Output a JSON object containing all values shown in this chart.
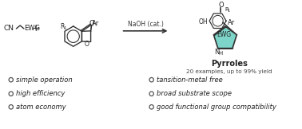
{
  "background_color": "#ffffff",
  "reaction_arrow_label": "NaOH (cat.)",
  "product_label": "Pyrroles",
  "product_sublabel": "20 examples, up to 99% yield",
  "bullet_color": "#4a4a4a",
  "bullet_items_left": [
    "simple operation",
    "high efficiency",
    "atom economy"
  ],
  "bullet_items_right": [
    "tansition-metal free",
    "broad substrate scope",
    "good functional group compatibility"
  ],
  "pyrrole_fill": "#7dd4c8",
  "text_color": "#222222",
  "label_color": "#444444"
}
